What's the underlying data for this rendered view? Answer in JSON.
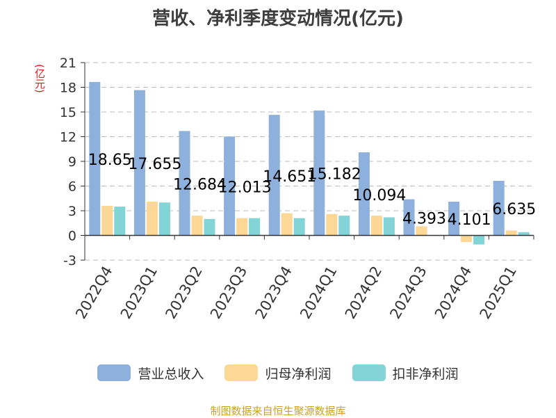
{
  "chart_data": {
    "type": "bar",
    "title": "营收、净利季度变动情况(亿元)",
    "ylabel": "(亿元)",
    "xlabel": "",
    "categories": [
      "2022Q4",
      "2023Q1",
      "2023Q2",
      "2023Q3",
      "2023Q4",
      "2024Q1",
      "2024Q2",
      "2024Q3",
      "2024Q4",
      "2025Q1"
    ],
    "series": [
      {
        "name": "营业总收入",
        "color": "#8eb0dc",
        "values": [
          18.65,
          17.655,
          12.684,
          12.013,
          14.651,
          15.182,
          10.094,
          4.393,
          4.101,
          6.635
        ],
        "labels": [
          "18.65",
          "17.655",
          "12.684",
          "12.013",
          "14.651",
          "15.182",
          "10.094",
          "4.393",
          "4.101",
          "6.635"
        ]
      },
      {
        "name": "归母净利润",
        "color": "#fdd796",
        "values": [
          3.6,
          4.1,
          2.4,
          2.1,
          2.7,
          2.6,
          2.4,
          1.1,
          -0.8,
          0.6
        ]
      },
      {
        "name": "扣非净利润",
        "color": "#83d4d6",
        "values": [
          3.5,
          4.0,
          2.0,
          2.1,
          2.1,
          2.4,
          2.2,
          0.0,
          -1.1,
          0.4
        ]
      }
    ],
    "ylim": [
      -3,
      21
    ],
    "yticks": [
      -3,
      0,
      3,
      6,
      9,
      12,
      15,
      18,
      21
    ],
    "grid": true,
    "legend_position": "bottom"
  },
  "footer": {
    "source": "制图数据来自恒生聚源数据库"
  }
}
